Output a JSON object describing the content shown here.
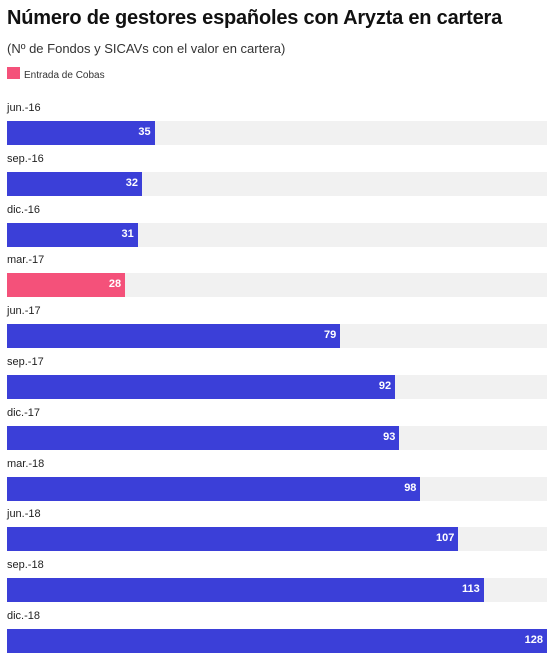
{
  "title": "Número de gestores españoles con Aryzta en cartera",
  "subtitle": "(Nº de Fondos y SICAVs con el valor en cartera)",
  "legend": {
    "label": "Entrada de Cobas",
    "color": "#f4517a"
  },
  "colors": {
    "bar": "#3b3fd8",
    "highlight": "#f4517a",
    "track": "#f1f1f1"
  },
  "chart_data": {
    "type": "bar",
    "orientation": "horizontal",
    "categories": [
      "jun.-16",
      "sep.-16",
      "dic.-16",
      "mar.-17",
      "jun.-17",
      "sep.-17",
      "dic.-17",
      "mar.-18",
      "jun.-18",
      "sep.-18",
      "dic.-18"
    ],
    "values": [
      35,
      32,
      31,
      28,
      79,
      92,
      93,
      98,
      107,
      113,
      128
    ],
    "highlighted": [
      "mar.-17"
    ],
    "xlim": [
      0,
      128
    ],
    "grid": false,
    "legend_position": "top-left",
    "data_labels": true
  }
}
